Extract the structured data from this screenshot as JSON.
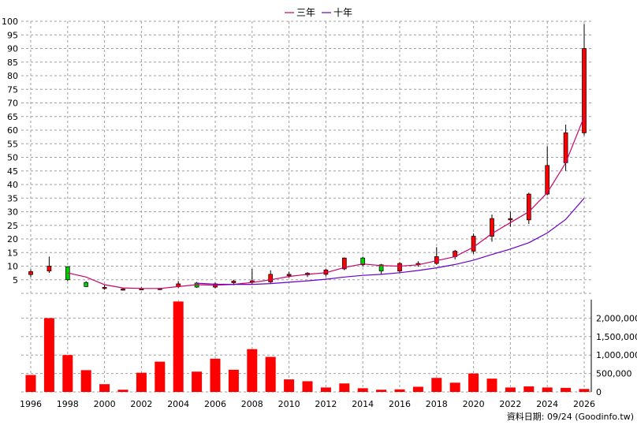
{
  "legend": {
    "items": [
      {
        "label": "三年",
        "color": "#cc0066"
      },
      {
        "label": "十年",
        "color": "#6600cc"
      }
    ]
  },
  "footer": {
    "text": "資料日期: 09/24  (Goodinfo.tw)"
  },
  "colors": {
    "up_candle": "#ff0000",
    "down_candle": "#00cc00",
    "volume_bar": "#ff0000",
    "grid": "#a0a0a0"
  },
  "chart_data": [
    {
      "type": "candlestick",
      "title": "",
      "ylim": [
        0,
        100
      ],
      "y_ticks": [
        5,
        10,
        15,
        20,
        25,
        30,
        35,
        40,
        45,
        50,
        55,
        60,
        65,
        70,
        75,
        80,
        85,
        90,
        95,
        100
      ],
      "x_ticks": [
        "1996",
        "1998",
        "2000",
        "2002",
        "2004",
        "2006",
        "2008",
        "2010",
        "2012",
        "2014",
        "2016",
        "2018",
        "2020",
        "2022",
        "2024",
        "2026"
      ],
      "candles": [
        {
          "year": 1996,
          "open": 6.9,
          "close": 8.0,
          "high": 8.8,
          "low": 6.0
        },
        {
          "year": 1997,
          "open": 8.2,
          "close": 10.0,
          "high": 13.5,
          "low": 7.5
        },
        {
          "year": 1998,
          "open": 9.8,
          "close": 5.0,
          "high": 10.0,
          "low": 4.5
        },
        {
          "year": 1999,
          "open": 4.0,
          "close": 2.5,
          "high": 4.5,
          "low": 2.3
        },
        {
          "year": 2000,
          "open": 2.0,
          "close": 2.2,
          "high": 3.0,
          "low": 1.3
        },
        {
          "year": 2001,
          "open": 1.5,
          "close": 1.6,
          "high": 2.0,
          "low": 1.0
        },
        {
          "year": 2002,
          "open": 1.6,
          "close": 1.7,
          "high": 2.2,
          "low": 1.2
        },
        {
          "year": 2003,
          "open": 1.5,
          "close": 1.8,
          "high": 2.0,
          "low": 1.2
        },
        {
          "year": 2004,
          "open": 2.5,
          "close": 3.5,
          "high": 4.5,
          "low": 2.0
        },
        {
          "year": 2005,
          "open": 3.8,
          "close": 2.3,
          "high": 4.2,
          "low": 2.0
        },
        {
          "year": 2006,
          "open": 2.3,
          "close": 3.5,
          "high": 4.0,
          "low": 1.8
        },
        {
          "year": 2007,
          "open": 3.9,
          "close": 4.5,
          "high": 5.0,
          "low": 3.0
        },
        {
          "year": 2008,
          "open": 4.0,
          "close": 4.6,
          "high": 9.0,
          "low": 3.5
        },
        {
          "year": 2009,
          "open": 4.2,
          "close": 7.0,
          "high": 8.5,
          "low": 3.5
        },
        {
          "year": 2010,
          "open": 6.5,
          "close": 7.0,
          "high": 8.0,
          "low": 5.8
        },
        {
          "year": 2011,
          "open": 6.8,
          "close": 7.4,
          "high": 7.8,
          "low": 6.0
        },
        {
          "year": 2012,
          "open": 7.0,
          "close": 8.6,
          "high": 9.0,
          "low": 6.2
        },
        {
          "year": 2013,
          "open": 9.0,
          "close": 13.0,
          "high": 13.2,
          "low": 8.5
        },
        {
          "year": 2014,
          "open": 13.0,
          "close": 10.5,
          "high": 13.5,
          "low": 10.0
        },
        {
          "year": 2015,
          "open": 10.5,
          "close": 8.2,
          "high": 10.8,
          "low": 7.0
        },
        {
          "year": 2016,
          "open": 8.2,
          "close": 11.0,
          "high": 11.5,
          "low": 7.5
        },
        {
          "year": 2017,
          "open": 10.5,
          "close": 11.0,
          "high": 11.8,
          "low": 9.8
        },
        {
          "year": 2018,
          "open": 11.0,
          "close": 13.5,
          "high": 17.0,
          "low": 10.5
        },
        {
          "year": 2019,
          "open": 13.5,
          "close": 15.5,
          "high": 16.0,
          "low": 12.5
        },
        {
          "year": 2020,
          "open": 15.5,
          "close": 21.0,
          "high": 22.0,
          "low": 14.5
        },
        {
          "year": 2021,
          "open": 21.0,
          "close": 27.5,
          "high": 29.0,
          "low": 19.0
        },
        {
          "year": 2022,
          "open": 27.0,
          "close": 27.5,
          "high": 30.0,
          "low": 24.5
        },
        {
          "year": 2023,
          "open": 27.0,
          "close": 36.5,
          "high": 37.0,
          "low": 25.5
        },
        {
          "year": 2024,
          "open": 36.5,
          "close": 47.0,
          "high": 54.0,
          "low": 36.0
        },
        {
          "year": 2025,
          "open": 48.0,
          "close": 59.0,
          "high": 62.0,
          "low": 45.0
        },
        {
          "year": 2026,
          "open": 59.0,
          "close": 90.0,
          "high": 99.0,
          "low": 58.0
        }
      ],
      "series": [
        {
          "name": "三年",
          "color": "#cc0066",
          "points": [
            [
              1998,
              7.5
            ],
            [
              1999,
              6.0
            ],
            [
              2000,
              3.2
            ],
            [
              2001,
              2.0
            ],
            [
              2002,
              1.8
            ],
            [
              2003,
              1.8
            ],
            [
              2004,
              2.5
            ],
            [
              2005,
              3.2
            ],
            [
              2006,
              3.0
            ],
            [
              2007,
              3.3
            ],
            [
              2008,
              4.0
            ],
            [
              2009,
              5.0
            ],
            [
              2010,
              6.2
            ],
            [
              2011,
              7.0
            ],
            [
              2012,
              7.6
            ],
            [
              2013,
              9.5
            ],
            [
              2014,
              10.8
            ],
            [
              2015,
              10.2
            ],
            [
              2016,
              10.0
            ],
            [
              2017,
              10.5
            ],
            [
              2018,
              12.0
            ],
            [
              2019,
              13.5
            ],
            [
              2020,
              17.0
            ],
            [
              2021,
              22.0
            ],
            [
              2022,
              26.0
            ],
            [
              2023,
              30.0
            ],
            [
              2024,
              37.0
            ],
            [
              2025,
              48.0
            ],
            [
              2026,
              65.0
            ]
          ]
        },
        {
          "name": "十年",
          "color": "#6600cc",
          "points": [
            [
              2005,
              3.7
            ],
            [
              2006,
              3.4
            ],
            [
              2007,
              3.3
            ],
            [
              2008,
              3.3
            ],
            [
              2009,
              3.6
            ],
            [
              2010,
              4.1
            ],
            [
              2011,
              4.6
            ],
            [
              2012,
              5.2
            ],
            [
              2013,
              6.0
            ],
            [
              2014,
              6.6
            ],
            [
              2015,
              7.0
            ],
            [
              2016,
              7.6
            ],
            [
              2017,
              8.4
            ],
            [
              2018,
              9.4
            ],
            [
              2019,
              10.6
            ],
            [
              2020,
              12.2
            ],
            [
              2021,
              14.3
            ],
            [
              2022,
              16.3
            ],
            [
              2023,
              18.6
            ],
            [
              2024,
              22.2
            ],
            [
              2025,
              27.2
            ],
            [
              2026,
              35.0
            ]
          ]
        }
      ]
    },
    {
      "type": "bar",
      "title": "",
      "ylim": [
        0,
        2500000
      ],
      "y_ticks": [
        "0",
        "500,000",
        "1,000,000",
        "1,500,000",
        "2,000,000"
      ],
      "categories": [
        1996,
        1997,
        1998,
        1999,
        2000,
        2001,
        2002,
        2003,
        2004,
        2005,
        2006,
        2007,
        2008,
        2009,
        2010,
        2011,
        2012,
        2013,
        2014,
        2015,
        2016,
        2017,
        2018,
        2019,
        2020,
        2021,
        2022,
        2023,
        2024,
        2025,
        2026
      ],
      "values": [
        460000,
        2000000,
        1000000,
        590000,
        210000,
        60000,
        520000,
        820000,
        2450000,
        550000,
        900000,
        600000,
        1160000,
        950000,
        340000,
        290000,
        120000,
        230000,
        100000,
        60000,
        70000,
        140000,
        380000,
        250000,
        500000,
        360000,
        120000,
        150000,
        120000,
        110000,
        80000
      ]
    }
  ]
}
